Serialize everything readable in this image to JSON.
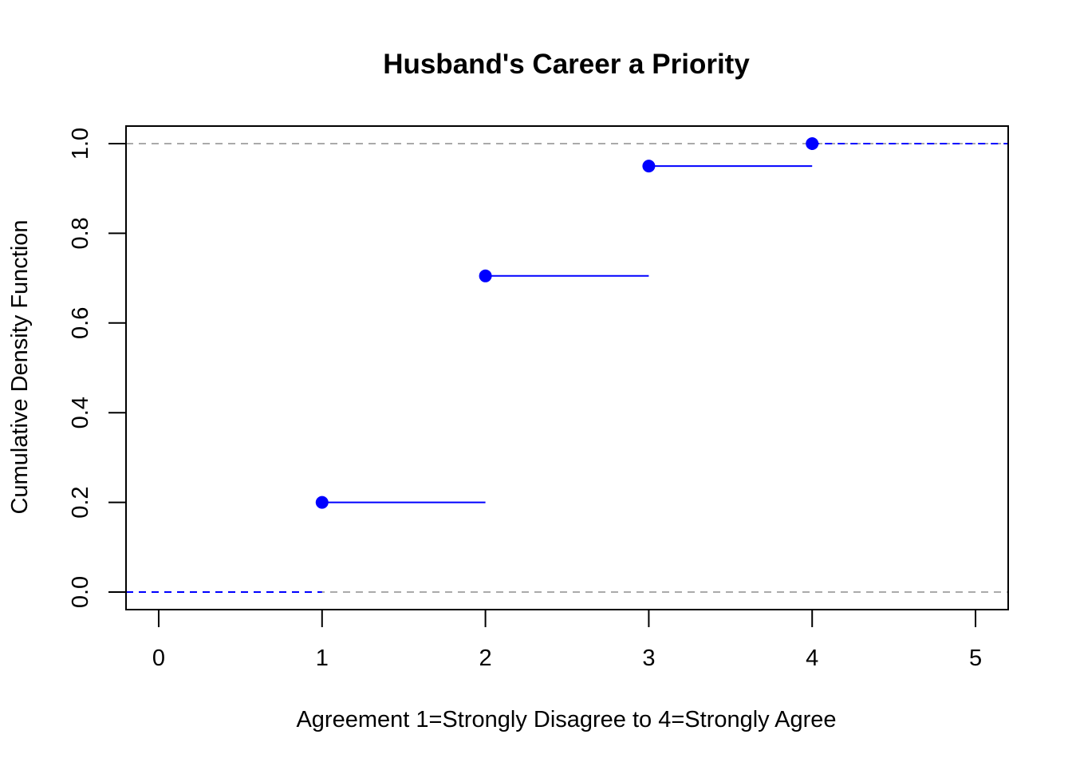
{
  "chart_data": {
    "type": "line",
    "subtype": "step-ecdf",
    "title": "Husband's Career a Priority",
    "xlabel": "Agreement 1=Strongly Disagree to 4=Strongly Agree",
    "ylabel": "Cumulative Density Function",
    "xlim": [
      -0.2,
      5.2
    ],
    "ylim": [
      0.0,
      1.0
    ],
    "x_ticks": [
      0,
      1,
      2,
      3,
      4,
      5
    ],
    "y_ticks": [
      0.0,
      0.2,
      0.4,
      0.6,
      0.8,
      1.0
    ],
    "x_tick_labels": [
      "0",
      "1",
      "2",
      "3",
      "4",
      "5"
    ],
    "y_tick_labels": [
      "0.0",
      "0.2",
      "0.4",
      "0.6",
      "0.8",
      "1.0"
    ],
    "points": [
      {
        "x": 1,
        "y": 0.2
      },
      {
        "x": 2,
        "y": 0.705
      },
      {
        "x": 3,
        "y": 0.95
      },
      {
        "x": 4,
        "y": 1.0
      }
    ],
    "reference_lines": [
      0.0,
      1.0
    ],
    "color": "#0000ff",
    "reference_color": "#aaaaaa",
    "grid": false,
    "legend": "none"
  }
}
